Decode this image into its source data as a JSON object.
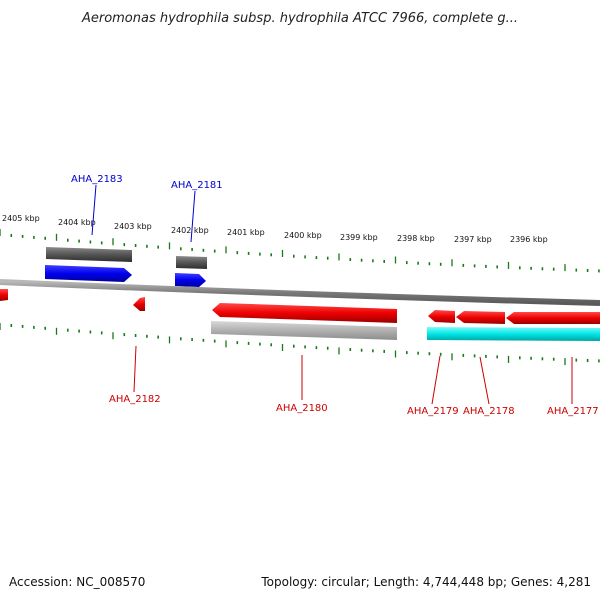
{
  "title": "Aeromonas hydrophila subsp. hydrophila ATCC 7966, complete g...",
  "scale_labels": [
    "2405 kbp",
    "2404 kbp",
    "2403 kbp",
    "2402 kbp",
    "2401 kbp",
    "2400 kbp",
    "2399 kbp",
    "2398 kbp",
    "2397 kbp",
    "2396 kbp"
  ],
  "genes": [
    {
      "label": "AHA_2183",
      "strand": "forward"
    },
    {
      "label": "AHA_2181",
      "strand": "forward"
    },
    {
      "label": "AHA_2182",
      "strand": "reverse"
    },
    {
      "label": "AHA_2180",
      "strand": "reverse"
    },
    {
      "label": "AHA_2179",
      "strand": "reverse"
    },
    {
      "label": "AHA_2178",
      "strand": "reverse"
    },
    {
      "label": "AHA_2177",
      "strand": "reverse"
    }
  ],
  "footer": {
    "accession": "Accession: NC_008570",
    "summary": "Topology: circular; Length: 4,744,448 bp; Genes: 4,281"
  },
  "colors": {
    "forward_gene": "#0000ee",
    "reverse_gene": "#ee0000",
    "forward_label": "#0000cc",
    "reverse_label": "#cc0000",
    "backbone": "#808080",
    "ticks": "#1a7a1a",
    "forward_feature": "#555555",
    "reverse_feature": "#b0b0b0",
    "cyan_feature": "#00e5e5"
  }
}
